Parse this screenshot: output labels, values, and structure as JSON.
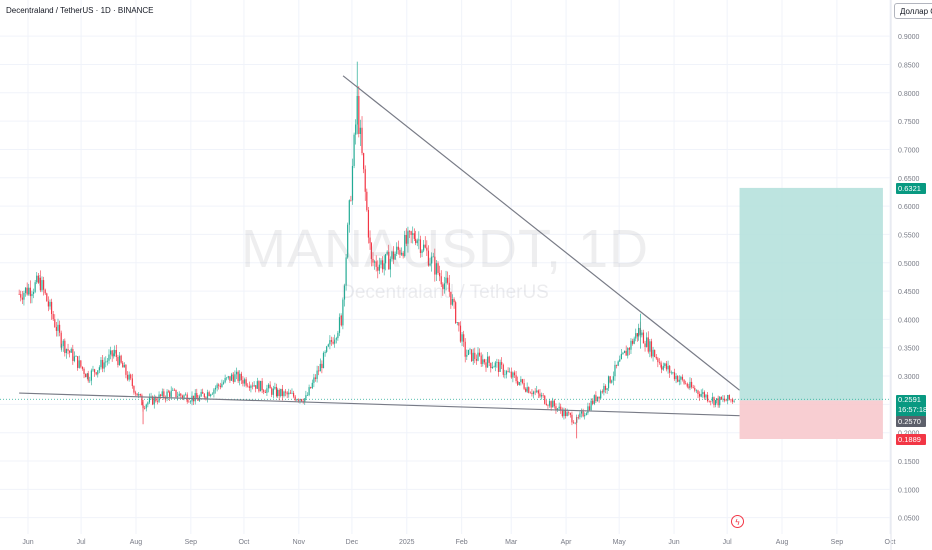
{
  "header": {
    "title": "Decentraland / TetherUS · 1D · BINANCE"
  },
  "currency_button": {
    "label": "Доллар СШ"
  },
  "watermark": {
    "title": "MANAUSDT, 1D",
    "subtitle": "Decentraland / TetherUS"
  },
  "price_labels": {
    "target": "0.6321",
    "current": "0.2591",
    "countdown": "16:57:18",
    "entry": "0.2570",
    "stop": "0.1889"
  },
  "colors": {
    "up": "#22ab94",
    "down": "#f23645",
    "trendline": "#787b86",
    "profit_zone": "#b2dfdb",
    "loss_zone": "#f7c9cd",
    "grid": "#f0f3fa"
  },
  "icons": {
    "alert": "alert-clock-icon"
  },
  "chart_data": {
    "type": "candlestick",
    "title": "Decentraland / TetherUS · 1D · BINANCE",
    "ylim": [
      0.0,
      0.95
    ],
    "y_scale": "linear",
    "y_ticks": [
      "0.9000",
      "0.8500",
      "0.8000",
      "0.7500",
      "0.7000",
      "0.6500",
      "0.6000",
      "0.5500",
      "0.5000",
      "0.4500",
      "0.4000",
      "0.3500",
      "0.3000",
      "0.2500",
      "0.2000",
      "0.1500",
      "0.1000",
      "0.0500"
    ],
    "x_ticks": [
      "Jun",
      "Jul",
      "Aug",
      "Sep",
      "Oct",
      "Nov",
      "Dec",
      "2025",
      "Feb",
      "Mar",
      "Apr",
      "May",
      "Jun",
      "Jul",
      "Aug",
      "Sep",
      "Oct"
    ],
    "x_tick_months": [
      "2024-06",
      "2024-07",
      "2024-08",
      "2024-09",
      "2024-10",
      "2024-11",
      "2024-12",
      "2025-01",
      "2025-02",
      "2025-03",
      "2025-04",
      "2025-05",
      "2025-06",
      "2025-07",
      "2025-08",
      "2025-09",
      "2025-10"
    ],
    "price_path": [
      [
        "2024-05-27",
        0.445
      ],
      [
        "2024-06-08",
        0.465
      ],
      [
        "2024-06-20",
        0.36
      ],
      [
        "2024-07-05",
        0.3
      ],
      [
        "2024-07-20",
        0.34
      ],
      [
        "2024-08-05",
        0.25
      ],
      [
        "2024-08-20",
        0.27
      ],
      [
        "2024-09-05",
        0.26
      ],
      [
        "2024-09-25",
        0.3
      ],
      [
        "2024-10-20",
        0.27
      ],
      [
        "2024-11-05",
        0.26
      ],
      [
        "2024-11-25",
        0.4
      ],
      [
        "2024-12-04",
        0.78
      ],
      [
        "2024-12-12",
        0.5
      ],
      [
        "2024-12-20",
        0.5
      ],
      [
        "2025-01-06",
        0.55
      ],
      [
        "2025-01-25",
        0.45
      ],
      [
        "2025-02-03",
        0.34
      ],
      [
        "2025-02-20",
        0.32
      ],
      [
        "2025-03-10",
        0.28
      ],
      [
        "2025-04-07",
        0.22
      ],
      [
        "2025-04-25",
        0.29
      ],
      [
        "2025-05-12",
        0.38
      ],
      [
        "2025-05-25",
        0.32
      ],
      [
        "2025-06-10",
        0.28
      ],
      [
        "2025-06-25",
        0.255
      ],
      [
        "2025-07-05",
        0.2591
      ]
    ],
    "notable_highs": [
      [
        "2024-12-04",
        0.855
      ],
      [
        "2025-05-13",
        0.41
      ]
    ],
    "notable_lows": [
      [
        "2024-08-05",
        0.215
      ],
      [
        "2025-04-07",
        0.19
      ]
    ],
    "trendlines": [
      {
        "from": [
          "2024-11-26",
          0.83
        ],
        "to": [
          "2025-07-08",
          0.275
        ]
      },
      {
        "from": [
          "2024-05-27",
          0.27
        ],
        "to": [
          "2025-07-08",
          0.23
        ]
      }
    ],
    "position": {
      "entry": 0.257,
      "target": 0.6321,
      "stop": 0.1889,
      "current": 0.2591,
      "from": "2025-07-08",
      "to": "2025-09-27"
    }
  }
}
